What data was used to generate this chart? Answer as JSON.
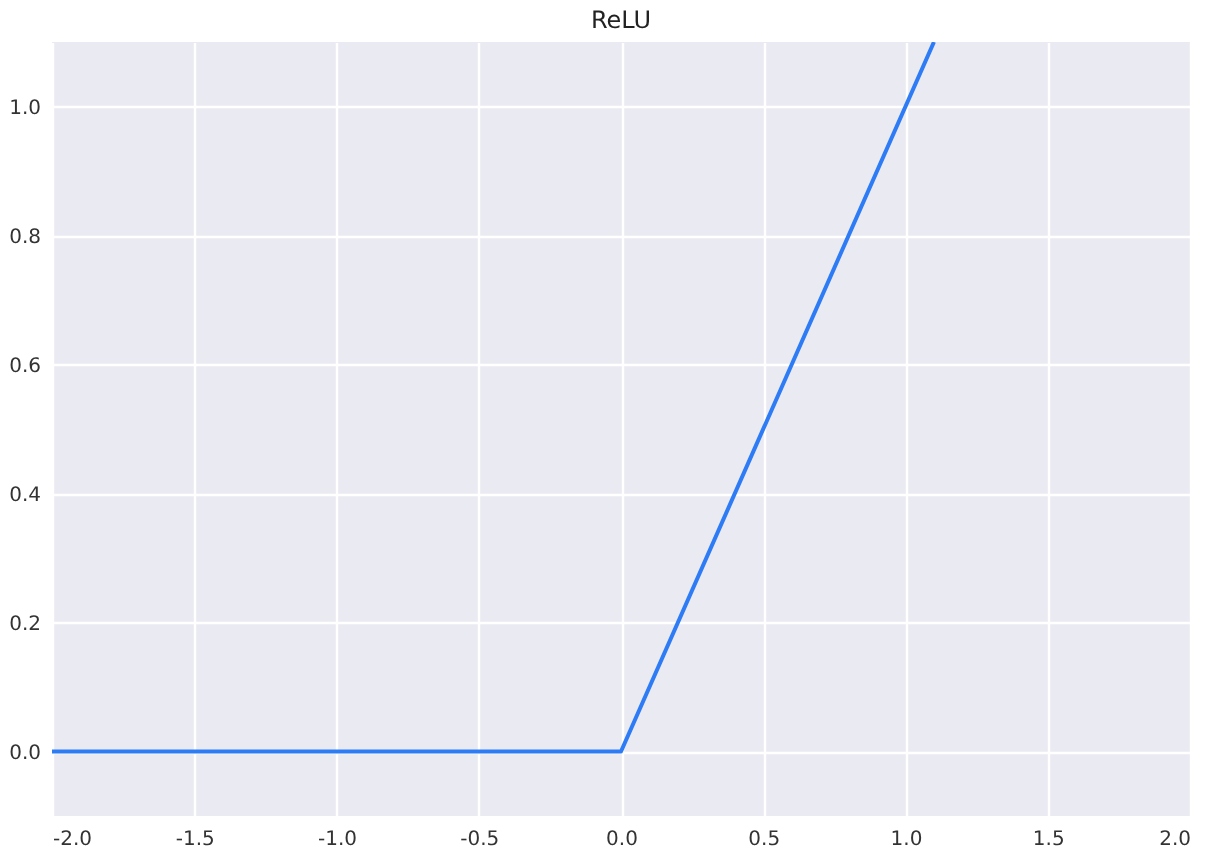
{
  "chart_data": {
    "type": "line",
    "title": "ReLU",
    "x": [
      -2.0,
      0.0,
      1.1
    ],
    "series": [
      {
        "color": "#2d7cf6",
        "values": [
          0.0,
          0.0,
          1.1
        ]
      }
    ],
    "xlim": [
      -2.0,
      2.0
    ],
    "xticks": [
      {
        "value": -2,
        "label": "-2.0"
      },
      -1.5,
      {
        "value": -1,
        "label": "-1.0"
      },
      -0.5,
      {
        "value": 0,
        "label": "0.0"
      },
      0.5,
      {
        "value": 1,
        "label": "1.0"
      },
      1.5,
      {
        "value": 2,
        "label": "2.0"
      }
    ],
    "ylim": [
      -0.1,
      1.1
    ],
    "yticks": [
      {
        "value": 0,
        "label": "0.0"
      },
      0.2,
      0.4,
      0.6,
      0.8,
      {
        "value": 1,
        "label": "1.0"
      }
    ],
    "grid": true,
    "marker": "none",
    "line_style": "solid"
  }
}
